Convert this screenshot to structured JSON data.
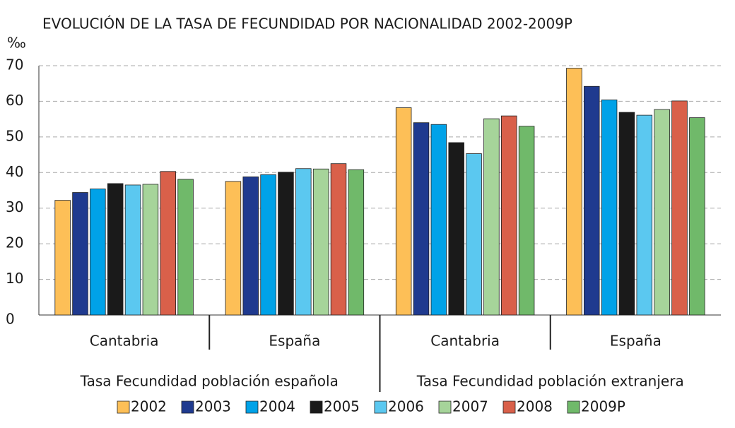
{
  "chart_data": {
    "type": "bar",
    "title": "EVOLUCIÓN DE LA TASA DE FECUNDIDAD POR NACIONALIDAD 2002-2009P",
    "ylabel": "‰",
    "groups": [
      {
        "name": "Tasa Fecundidad población española",
        "categories": [
          "Cantabria",
          "España"
        ]
      },
      {
        "name": "Tasa Fecundidad población extranjera",
        "categories": [
          "Cantabria",
          "España"
        ]
      }
    ],
    "series": [
      {
        "name": "2002",
        "color": "#fdbf57",
        "values": [
          32.2,
          37.5,
          58.2,
          69.3
        ]
      },
      {
        "name": "2003",
        "color": "#1f3a8f",
        "values": [
          34.4,
          38.8,
          54.0,
          64.2
        ]
      },
      {
        "name": "2004",
        "color": "#00a2e8",
        "values": [
          35.4,
          39.4,
          53.5,
          60.4
        ]
      },
      {
        "name": "2005",
        "color": "#1a1a1a",
        "values": [
          36.9,
          40.1,
          48.4,
          56.9
        ]
      },
      {
        "name": "2006",
        "color": "#5bc8f0",
        "values": [
          36.5,
          41.1,
          45.3,
          56.1
        ]
      },
      {
        "name": "2007",
        "color": "#a6d49a",
        "values": [
          36.7,
          41.0,
          55.1,
          57.7
        ]
      },
      {
        "name": "2008",
        "color": "#d9604a",
        "values": [
          40.3,
          42.5,
          55.9,
          60.1
        ]
      },
      {
        "name": "2009P",
        "color": "#70b96a",
        "values": [
          38.1,
          40.8,
          53.0,
          55.4
        ]
      }
    ],
    "ylim": [
      0,
      70
    ],
    "yticks": [
      0,
      10,
      20,
      30,
      40,
      50,
      60,
      70
    ],
    "grid": true,
    "legend": "bottom"
  }
}
